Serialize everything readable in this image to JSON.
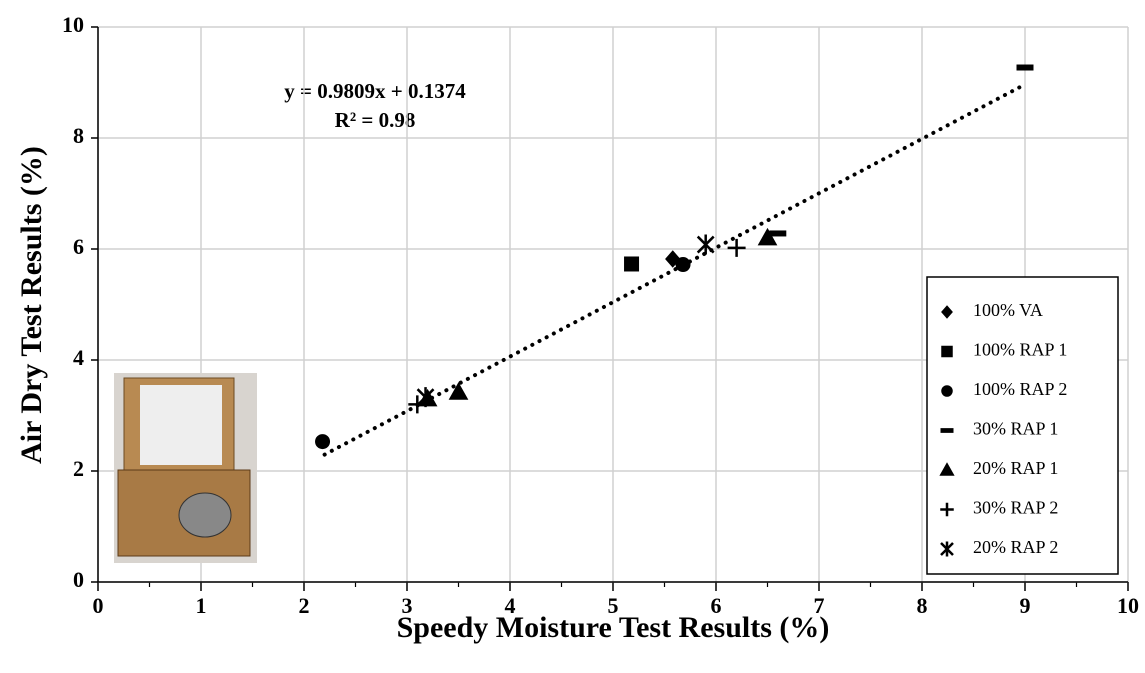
{
  "chart_data": {
    "type": "scatter",
    "x_label": "Speedy Moisture Test Results (%)",
    "y_label": "Air Dry Test Results (%)",
    "xlim": [
      0,
      10
    ],
    "xticks": [
      0,
      1,
      2,
      3,
      4,
      5,
      6,
      7,
      8,
      9,
      10
    ],
    "ylim": [
      0,
      10
    ],
    "yticks": [
      0,
      2,
      4,
      6,
      8,
      10
    ],
    "grid": true,
    "legend": "lower right",
    "trendline": {
      "equation": "y = 0.9809x + 0.1374",
      "r_squared": "R² = 0.98",
      "slope": 0.9809,
      "intercept": 0.1374,
      "x": [
        2.2,
        9.0
      ]
    },
    "series": [
      {
        "name": "100% VA",
        "marker": "diamond",
        "color": "#000000",
        "x": [
          5.58
        ],
        "values": [
          5.82
        ]
      },
      {
        "name": "100% RAP 1",
        "marker": "square",
        "color": "#000000",
        "x": [
          5.18
        ],
        "values": [
          5.73
        ]
      },
      {
        "name": "100% RAP 2",
        "marker": "circle",
        "color": "#000000",
        "x": [
          5.68,
          2.18
        ],
        "values": [
          5.72,
          2.53
        ]
      },
      {
        "name": "30% RAP 1",
        "marker": "dash",
        "color": "#000000",
        "x": [
          9.0,
          6.6
        ],
        "values": [
          9.27,
          6.28
        ]
      },
      {
        "name": "20% RAP 1",
        "marker": "triangle",
        "color": "#000000",
        "x": [
          6.5,
          3.5,
          3.2
        ],
        "values": [
          6.2,
          3.42,
          3.3
        ]
      },
      {
        "name": "30% RAP 2",
        "marker": "plus",
        "color": "#000000",
        "x": [
          6.2,
          3.1
        ],
        "values": [
          6.02,
          3.2
        ]
      },
      {
        "name": "20% RAP 2",
        "marker": "star",
        "color": "#000000",
        "x": [
          5.9,
          3.18
        ],
        "values": [
          6.08,
          3.33
        ]
      }
    ]
  }
}
